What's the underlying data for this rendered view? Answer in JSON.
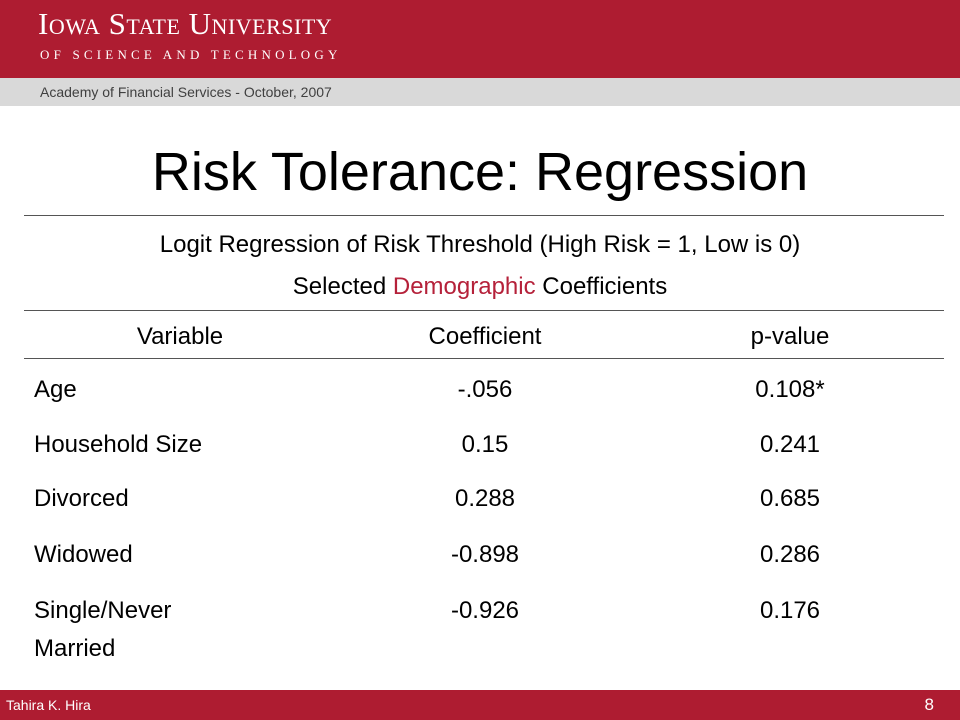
{
  "header": {
    "university": "Iowa State University",
    "subtitle": "OF SCIENCE AND TECHNOLOGY",
    "event": "Academy of Financial Services - October, 2007"
  },
  "slide": {
    "title": "Risk Tolerance: Regression",
    "caption_line1": "Logit Regression of Risk Threshold (High Risk = 1, Low is 0)",
    "caption_line2_pre": "Selected ",
    "caption_line2_accent": "Demographic",
    "caption_line2_post": " Coefficients"
  },
  "table": {
    "headers": [
      "Variable",
      "Coefficient",
      "p-value"
    ],
    "rows": [
      {
        "variable": "Age",
        "coefficient": "-.056",
        "pvalue": "0.108*"
      },
      {
        "variable": "Household Size",
        "coefficient": "0.15",
        "pvalue": "0.241"
      },
      {
        "variable": "Divorced",
        "coefficient": "0.288",
        "pvalue": "0.685"
      },
      {
        "variable": "Widowed",
        "coefficient": "-0.898",
        "pvalue": "0.286"
      },
      {
        "variable": "Single/Never",
        "variable_line2": "Married",
        "coefficient": "-0.926",
        "pvalue": "0.176"
      }
    ]
  },
  "footer": {
    "author": "Tahira K. Hira",
    "page": "8"
  },
  "colors": {
    "brand_red": "#ae1c31",
    "accent_red": "#b5213a",
    "subbar_gray": "#d9d9d9"
  }
}
